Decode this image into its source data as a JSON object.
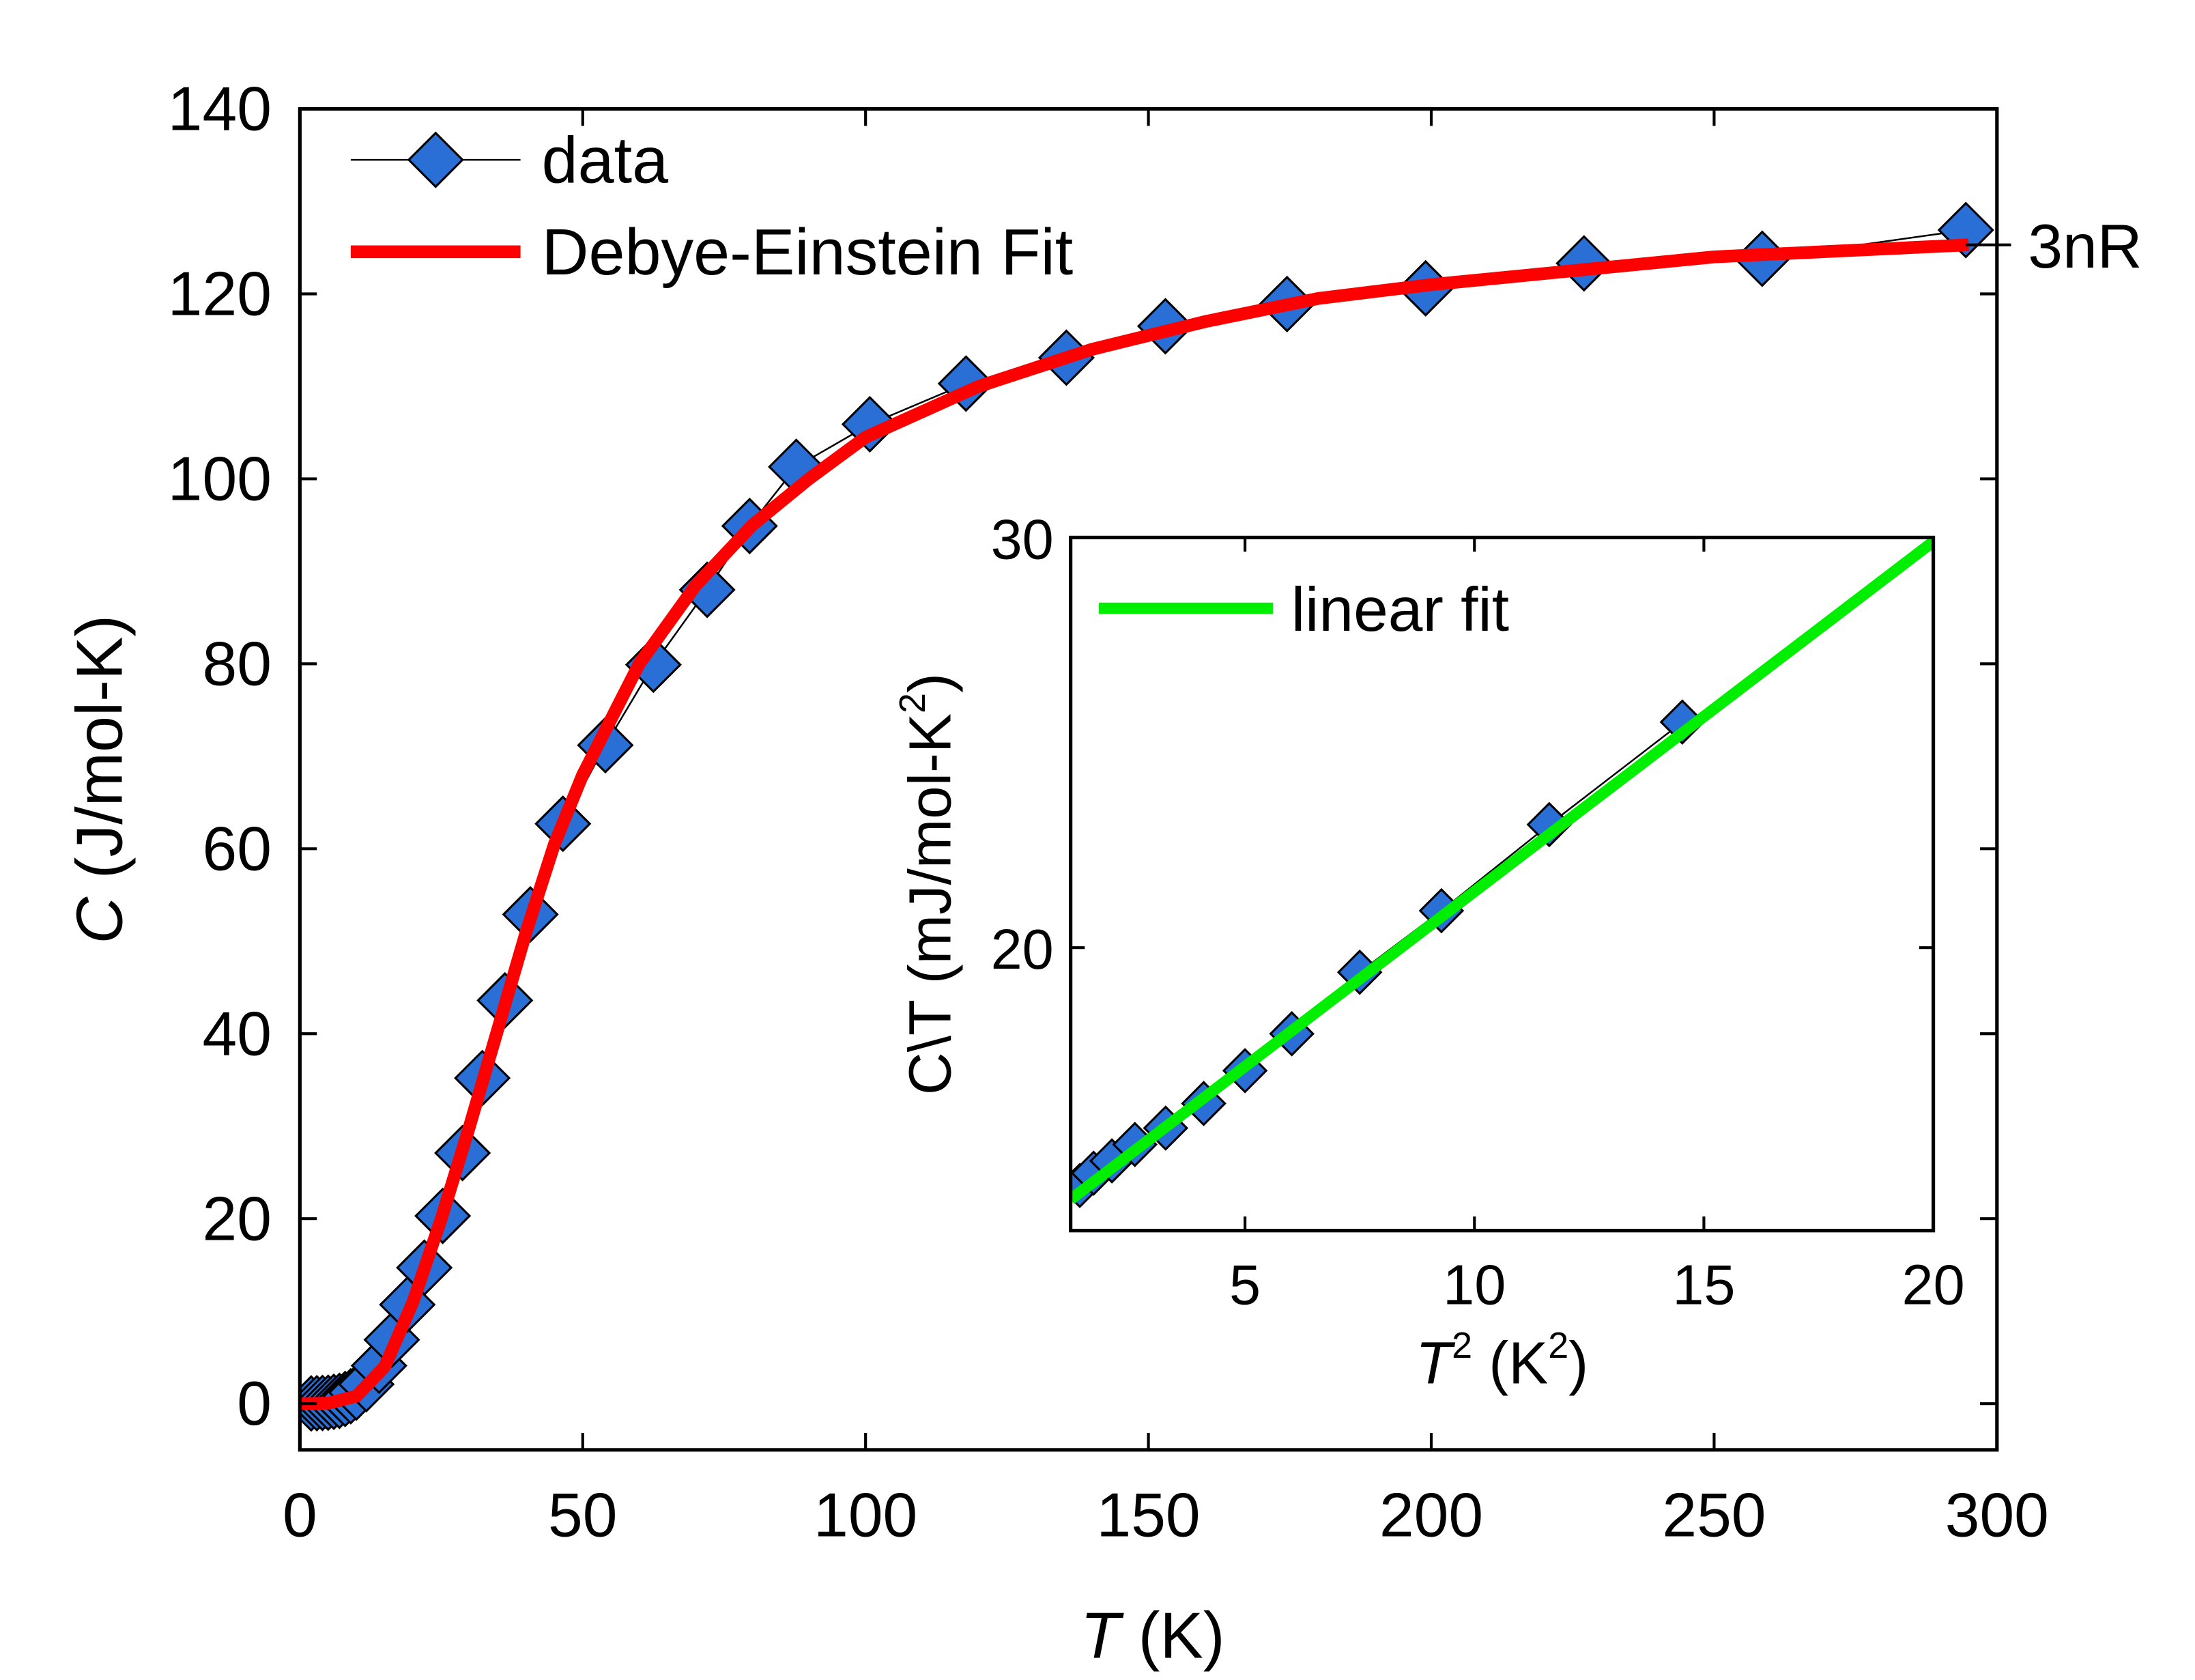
{
  "chart_data": [
    {
      "type": "line",
      "xlabel": [
        "T",
        " (K)"
      ],
      "ylabel": [
        "C",
        " (J/mol-K)"
      ],
      "xlim": [
        0,
        300
      ],
      "xticks": [
        0,
        50,
        100,
        150,
        200,
        250,
        300
      ],
      "ylim": [
        -5,
        140
      ],
      "yticks": [
        0,
        20,
        40,
        60,
        80,
        100,
        120,
        140
      ],
      "series": [
        {
          "name": "data",
          "color": "#2a6fd6",
          "marker": "diamond",
          "x": [
            2,
            3,
            4,
            5,
            6,
            7,
            8,
            9,
            10,
            11.75,
            14,
            16.25,
            19,
            22,
            25.25,
            28.75,
            32.25,
            36.25,
            40.75,
            46.5,
            54,
            62.5,
            72,
            79.5,
            87.75,
            100.75,
            117.75,
            135.5,
            153,
            174.5,
            199,
            227,
            258.5,
            294.5
          ],
          "values": [
            0.02,
            0.04,
            0.07,
            0.1,
            0.2,
            0.3,
            0.5,
            0.8,
            1.2,
            2.1,
            4.1,
            6.9,
            10.7,
            14.7,
            20.3,
            27.1,
            35.2,
            43.6,
            52.9,
            62.7,
            71.2,
            79.9,
            88,
            94.9,
            101.3,
            105.9,
            110.3,
            113.1,
            116.5,
            118.9,
            120.6,
            123.3,
            123.8,
            126.9
          ]
        },
        {
          "name": "Debye-Einstein Fit",
          "color": "#ff0000",
          "marker": "none",
          "x": [
            0,
            5,
            10,
            15,
            20,
            25,
            30,
            35,
            40,
            45,
            50,
            60,
            70,
            80,
            90,
            100,
            120,
            140,
            160,
            180,
            200,
            250,
            295
          ],
          "values": [
            0,
            0.05,
            0.8,
            4,
            11,
            20,
            30,
            40.5,
            51,
            60.5,
            68,
            80,
            88.5,
            95,
            100,
            104.5,
            110,
            114,
            117,
            119.5,
            121,
            124,
            125.3
          ]
        }
      ],
      "annotation": {
        "text": "3nR",
        "value": 125.3
      }
    },
    {
      "type": "line",
      "xlabel": [
        "T",
        "2",
        " (K",
        "2",
        ")"
      ],
      "ylabel": [
        "C\\T (mJ/mol-K",
        "2",
        ")"
      ],
      "xlim": [
        1.2,
        20
      ],
      "xticks": [
        5,
        10,
        15,
        20
      ],
      "ylim": [
        13.1,
        30
      ],
      "yticks": [
        20,
        30
      ],
      "series": [
        {
          "color": "#2a6fd6",
          "marker": "diamond",
          "x": [
            1.4,
            1.7,
            2.1,
            2.6,
            3.27,
            4.1,
            5.0,
            6.02,
            7.5,
            9.28,
            11.63,
            14.53
          ],
          "values": [
            14.2,
            14.5,
            14.8,
            15.2,
            15.6,
            16.2,
            17.0,
            17.9,
            19.4,
            20.9,
            23.0,
            25.5
          ]
        },
        {
          "name": "linear fit",
          "color": "#00ee00",
          "marker": "none",
          "x": [
            1.2,
            20
          ],
          "values": [
            13.86,
            29.9
          ]
        }
      ]
    }
  ]
}
